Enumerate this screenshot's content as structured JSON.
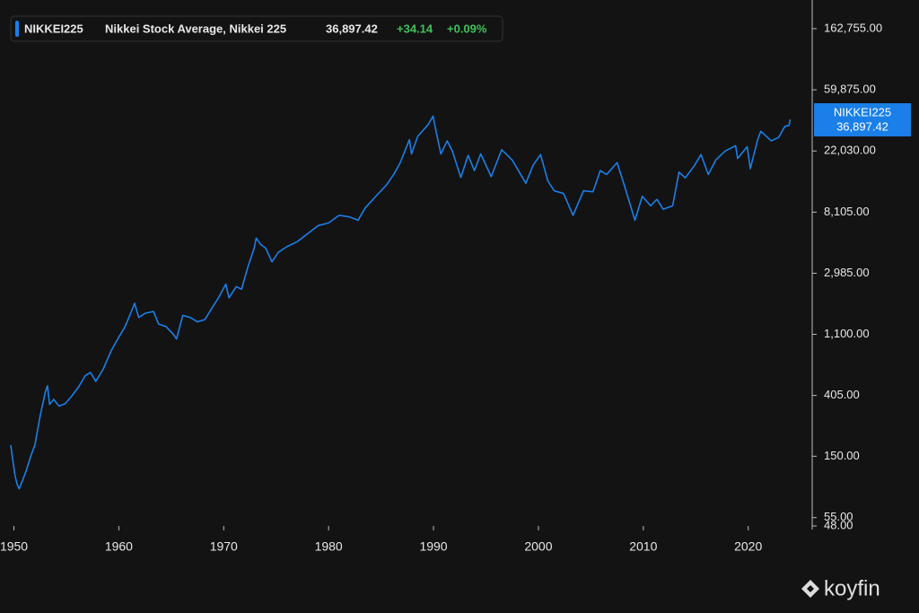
{
  "chart_data": {
    "type": "line",
    "header": {
      "symbol": "NIKKEI225",
      "name": "Nikkei Stock Average, Nikkei 225",
      "last": "36,897.42",
      "change": "+34.14",
      "change_pct": "+0.09%"
    },
    "brand": "koyfin",
    "log_y": true,
    "grid": false,
    "xlim": [
      1949.7,
      2026.1
    ],
    "xticks": [
      1950,
      1960,
      1970,
      1980,
      1990,
      2000,
      2010,
      2020
    ],
    "ylim": [
      48,
      260000
    ],
    "yticks": [
      {
        "value": 162755,
        "label": "162,755.00"
      },
      {
        "value": 59875,
        "label": "59,875.00"
      },
      {
        "value": 22030,
        "label": "22,030.00"
      },
      {
        "value": 8105,
        "label": "8,105.00"
      },
      {
        "value": 2985,
        "label": "2,985.00"
      },
      {
        "value": 1100,
        "label": "1,100.00"
      },
      {
        "value": 405,
        "label": "405.00"
      },
      {
        "value": 150,
        "label": "150.00"
      },
      {
        "value": 55,
        "label": "55.00"
      },
      {
        "value": 48,
        "label": "48.00"
      }
    ],
    "series": [
      {
        "name": "NIKKEI225",
        "color": "#1a7fe8",
        "x": [
          1949.7,
          1949.9,
          1950.1,
          1950.3,
          1950.5,
          1950.8,
          1951.2,
          1951.6,
          1952.0,
          1952.5,
          1953.0,
          1953.2,
          1953.4,
          1953.8,
          1954.3,
          1954.9,
          1955.5,
          1956.2,
          1956.8,
          1957.3,
          1957.8,
          1958.5,
          1959.3,
          1960.0,
          1960.6,
          1961.2,
          1961.5,
          1961.9,
          1962.5,
          1963.3,
          1963.8,
          1964.5,
          1965.2,
          1965.5,
          1966.1,
          1966.8,
          1967.5,
          1968.2,
          1968.9,
          1969.5,
          1970.2,
          1970.5,
          1971.2,
          1971.7,
          1972.3,
          1972.9,
          1973.1,
          1973.5,
          1974.0,
          1974.6,
          1975.2,
          1976.0,
          1977.0,
          1978.0,
          1979.0,
          1980.0,
          1981.0,
          1982.0,
          1982.8,
          1983.5,
          1984.5,
          1985.5,
          1986.2,
          1986.8,
          1987.7,
          1987.9,
          1988.5,
          1989.5,
          1989.95,
          1990.3,
          1990.7,
          1991.3,
          1991.8,
          1992.6,
          1993.3,
          1993.9,
          1994.5,
          1995.5,
          1996.5,
          1997.5,
          1998.8,
          1999.5,
          2000.2,
          2000.9,
          2001.5,
          2002.4,
          2003.3,
          2004.3,
          2005.2,
          2005.9,
          2006.5,
          2007.5,
          2008.2,
          2009.2,
          2009.9,
          2010.7,
          2011.3,
          2011.9,
          2012.8,
          2013.4,
          2014.0,
          2014.9,
          2015.5,
          2016.2,
          2016.9,
          2017.8,
          2018.8,
          2018.99,
          2019.9,
          2020.2,
          2020.9,
          2021.2,
          2022.2,
          2022.9,
          2023.5,
          2023.9,
          2024.0
        ],
        "values": [
          180,
          140,
          110,
          95,
          88,
          100,
          120,
          150,
          180,
          290,
          430,
          474,
          350,
          380,
          340,
          355,
          400,
          470,
          560,
          590,
          510,
          620,
          850,
          1050,
          1250,
          1600,
          1829,
          1450,
          1550,
          1600,
          1300,
          1250,
          1100,
          1020,
          1500,
          1450,
          1350,
          1400,
          1700,
          2000,
          2500,
          2000,
          2400,
          2300,
          3300,
          4500,
          5300,
          4800,
          4500,
          3600,
          4200,
          4600,
          5000,
          5700,
          6500,
          6800,
          7700,
          7500,
          7100,
          8700,
          10500,
          12600,
          15000,
          18000,
          26500,
          21000,
          28000,
          34000,
          38915,
          29000,
          21000,
          26000,
          22000,
          14300,
          20500,
          16000,
          21000,
          14500,
          22500,
          19000,
          13000,
          17500,
          20800,
          13500,
          11500,
          11000,
          7700,
          11500,
          11300,
          16000,
          15000,
          18200,
          12500,
          7100,
          10500,
          9000,
          10000,
          8500,
          9000,
          15600,
          14200,
          17500,
          20800,
          15000,
          19000,
          22000,
          24000,
          19500,
          23600,
          16500,
          26500,
          30400,
          26000,
          27500,
          33000,
          33500,
          36897.42
        ]
      }
    ]
  }
}
